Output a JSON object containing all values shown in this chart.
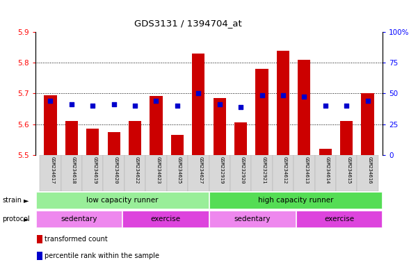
{
  "title": "GDS3131 / 1394704_at",
  "samples": [
    "GSM234617",
    "GSM234618",
    "GSM234619",
    "GSM234620",
    "GSM234622",
    "GSM234623",
    "GSM234625",
    "GSM234627",
    "GSM232919",
    "GSM232920",
    "GSM232921",
    "GSM234612",
    "GSM234613",
    "GSM234614",
    "GSM234615",
    "GSM234616"
  ],
  "bar_values": [
    5.695,
    5.61,
    5.585,
    5.575,
    5.61,
    5.692,
    5.565,
    5.83,
    5.685,
    5.605,
    5.78,
    5.84,
    5.81,
    5.52,
    5.61,
    5.7
  ],
  "dot_values": [
    5.675,
    5.665,
    5.66,
    5.665,
    5.66,
    5.675,
    5.66,
    5.7,
    5.665,
    5.655,
    5.695,
    5.695,
    5.69,
    5.66,
    5.66,
    5.675
  ],
  "ymin": 5.5,
  "ymax": 5.9,
  "yticks": [
    5.5,
    5.6,
    5.7,
    5.8,
    5.9
  ],
  "ytick_labels": [
    "5.5",
    "5.6",
    "5.7",
    "5.8",
    "5.9"
  ],
  "y2ticks": [
    0,
    25,
    50,
    75,
    100
  ],
  "y2tick_labels": [
    "0",
    "25",
    "50",
    "75",
    "100%"
  ],
  "bar_color": "#cc0000",
  "dot_color": "#0000cc",
  "bar_width": 0.6,
  "strain_groups": [
    {
      "label": "low capacity runner",
      "start": 0,
      "end": 8,
      "color": "#99ee99"
    },
    {
      "label": "high capacity runner",
      "start": 8,
      "end": 16,
      "color": "#55dd55"
    }
  ],
  "protocol_groups": [
    {
      "label": "sedentary",
      "start": 0,
      "end": 4,
      "color": "#ee88ee"
    },
    {
      "label": "exercise",
      "start": 4,
      "end": 8,
      "color": "#dd44dd"
    },
    {
      "label": "sedentary",
      "start": 8,
      "end": 12,
      "color": "#ee88ee"
    },
    {
      "label": "exercise",
      "start": 12,
      "end": 16,
      "color": "#dd44dd"
    }
  ],
  "legend_items": [
    {
      "label": "transformed count",
      "color": "#cc0000"
    },
    {
      "label": "percentile rank within the sample",
      "color": "#0000cc"
    }
  ],
  "figsize": [
    6.01,
    3.84
  ],
  "dpi": 100
}
